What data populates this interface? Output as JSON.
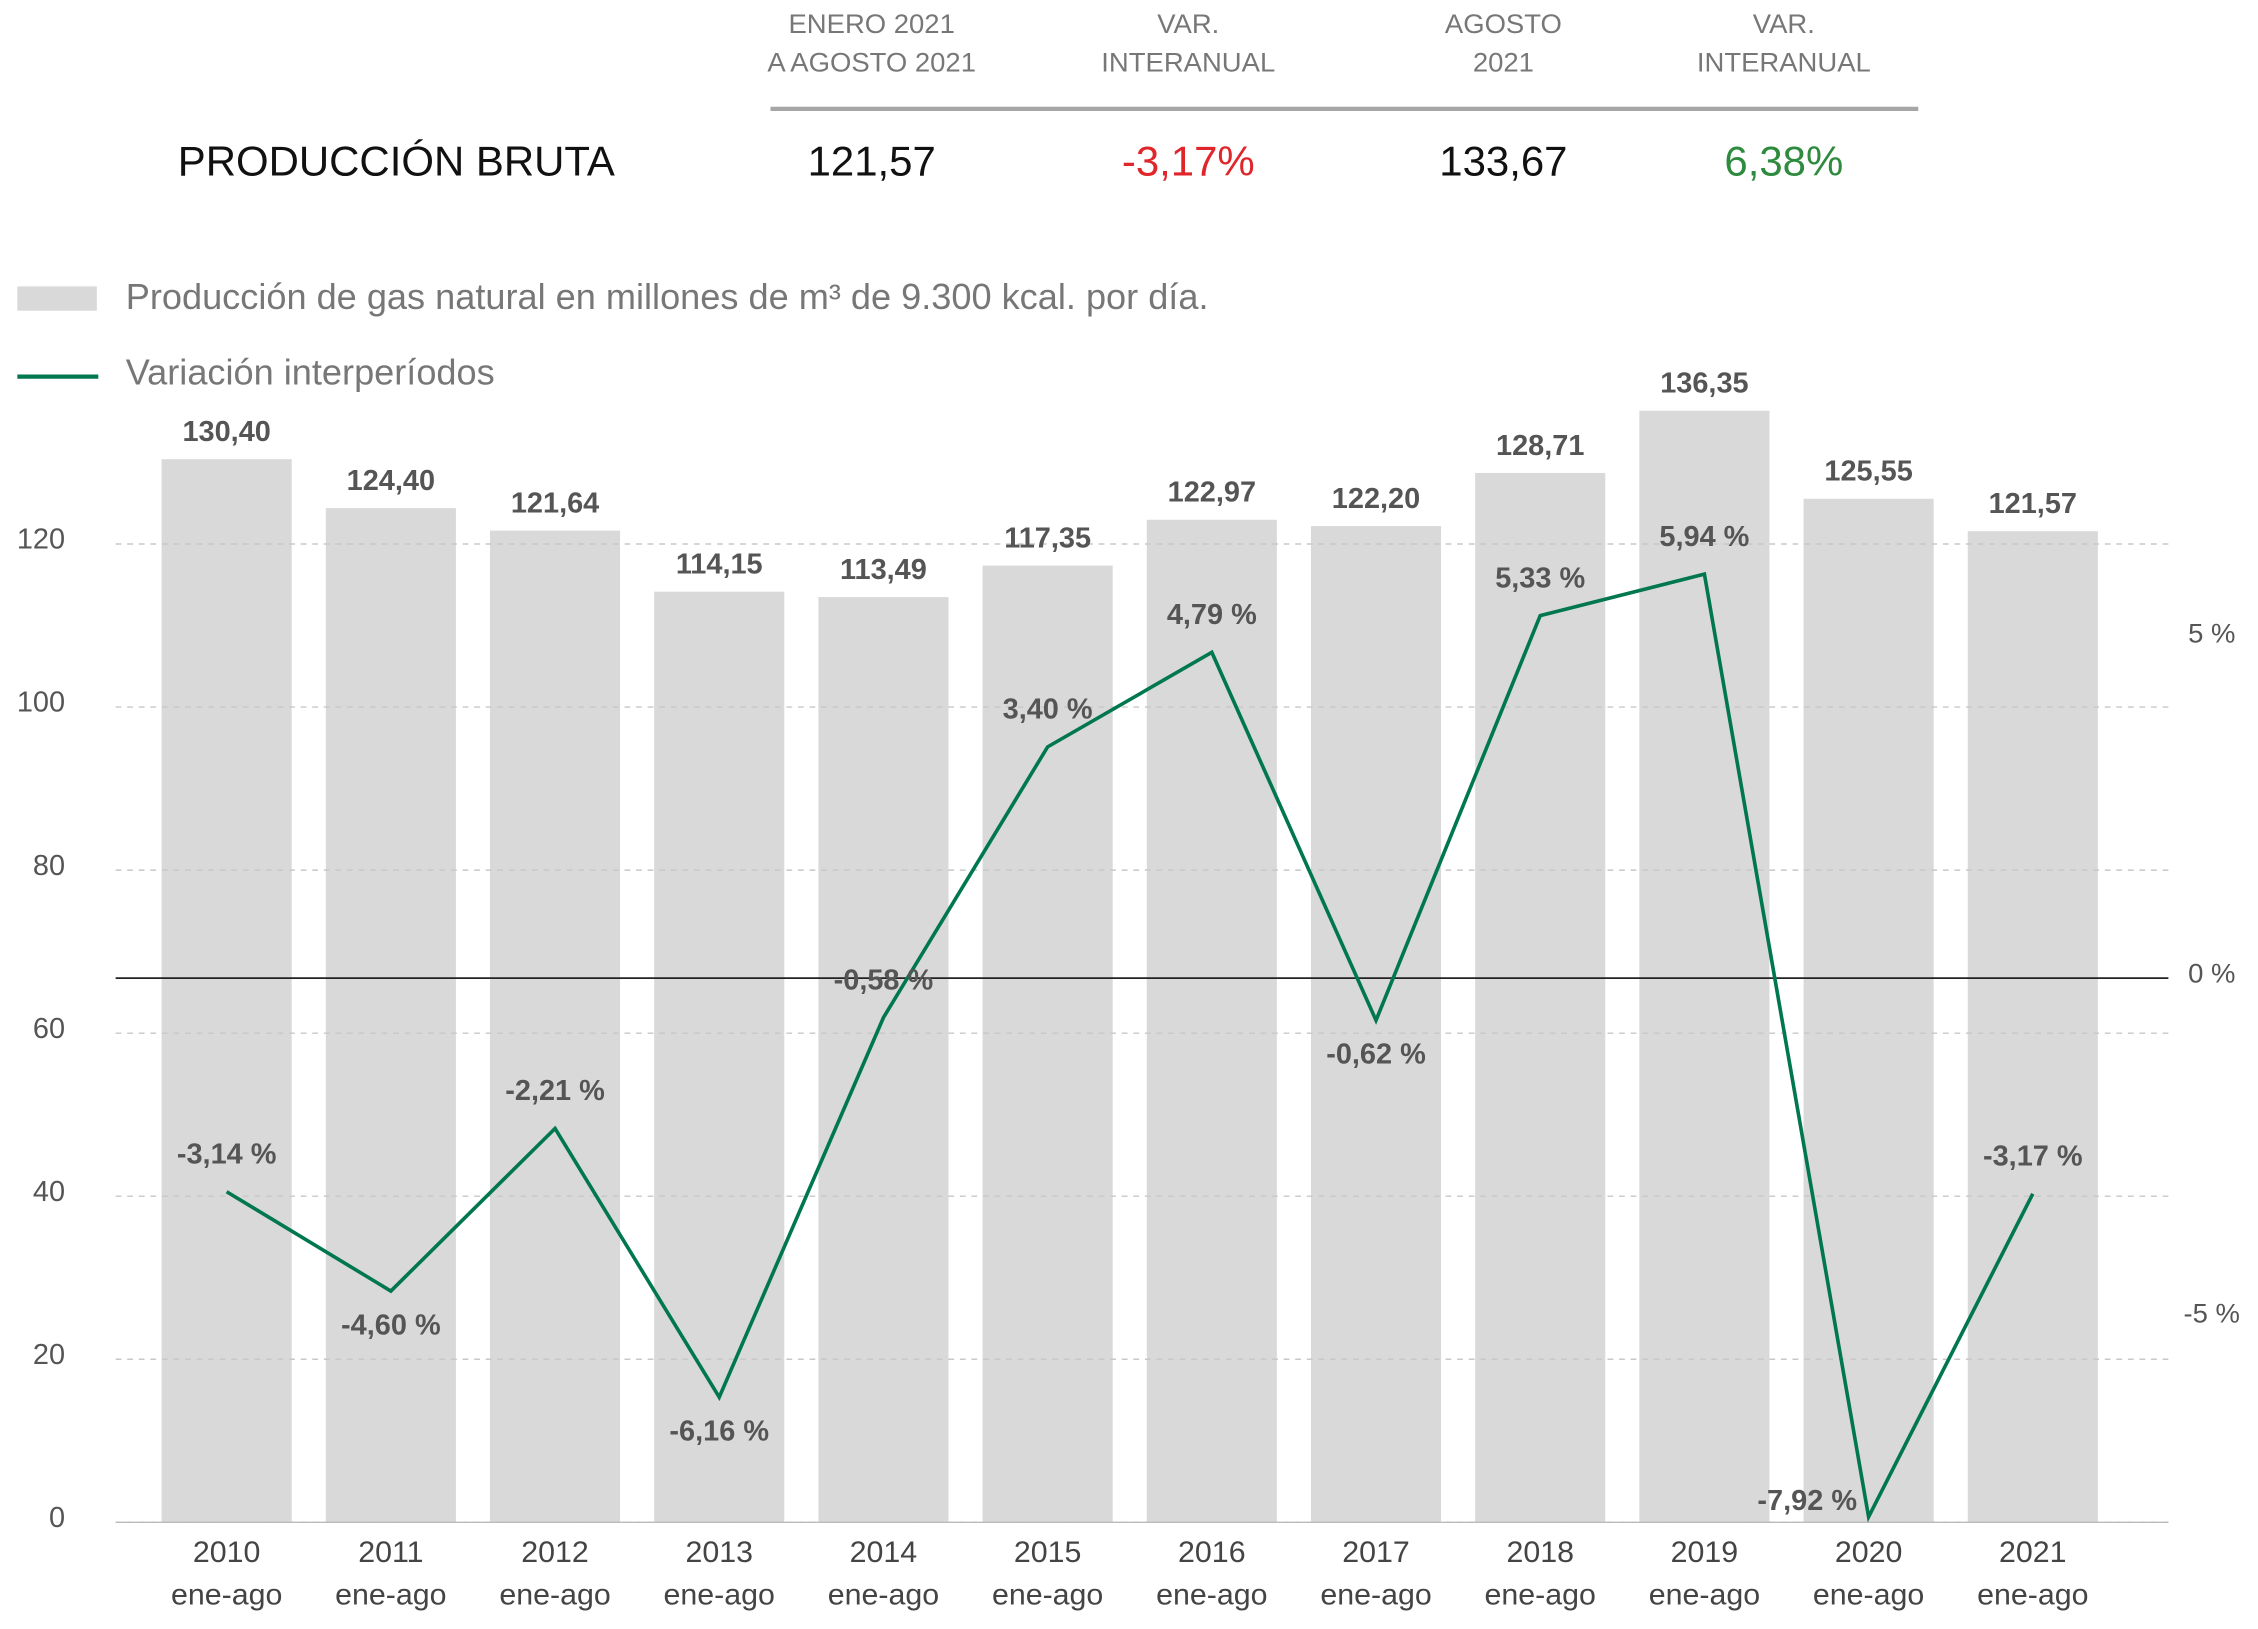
{
  "summary": {
    "headers": [
      [
        "ENERO 2021",
        "A AGOSTO 2021"
      ],
      [
        "VAR.",
        "INTERANUAL"
      ],
      [
        "AGOSTO",
        "2021"
      ],
      [
        "VAR.",
        "INTERANUAL"
      ]
    ],
    "row_label": "PRODUCCIÓN BRUTA",
    "values": [
      "121,57",
      "-3,17%",
      "133,67",
      "6,38%"
    ],
    "value_colors": [
      "#111111",
      "#e0262b",
      "#111111",
      "#2e8b3e"
    ]
  },
  "chart_data": {
    "type": "bar_line",
    "categories": [
      "2010",
      "2011",
      "2012",
      "2013",
      "2014",
      "2015",
      "2016",
      "2017",
      "2018",
      "2019",
      "2020",
      "2021"
    ],
    "category_sublabel": "ene-ago",
    "series": [
      {
        "name": "Producción de gas natural en millones de m³ de 9.300 kcal. por día.",
        "type": "bar",
        "color": "#d9d9d9",
        "values": [
          130.4,
          124.4,
          121.64,
          114.15,
          113.49,
          117.35,
          122.97,
          122.2,
          128.71,
          136.35,
          125.55,
          121.57
        ],
        "value_labels": [
          "130,40",
          "124,40",
          "121,64",
          "114,15",
          "113,49",
          "117,35",
          "122,97",
          "122,20",
          "128,71",
          "136,35",
          "125,55",
          "121,57"
        ]
      },
      {
        "name": "Variación interperíodos",
        "type": "line",
        "axis": "y2",
        "color": "#00774f",
        "values": [
          -3.14,
          -4.6,
          -2.21,
          -6.16,
          -0.58,
          3.4,
          4.79,
          -0.62,
          5.33,
          5.94,
          -7.92,
          -3.17
        ],
        "value_labels": [
          "-3,14 %",
          "-4,60 %",
          "-2,21 %",
          "-6,16 %",
          "-0,58 %",
          "3,40 %",
          "4,79 %",
          "-0,62 %",
          "5,33 %",
          "5,94 %",
          "-7,92 %",
          "-3,17 %"
        ]
      }
    ],
    "ylim": [
      0,
      140
    ],
    "yticks": [
      0,
      20,
      40,
      60,
      80,
      100,
      120
    ],
    "y2lim": [
      -8,
      8.78
    ],
    "y2ticks": [
      {
        "value": -5,
        "label": "-5 %"
      },
      {
        "value": 0,
        "label": "0 %"
      },
      {
        "value": 5,
        "label": "5 %"
      }
    ],
    "grid": true
  }
}
